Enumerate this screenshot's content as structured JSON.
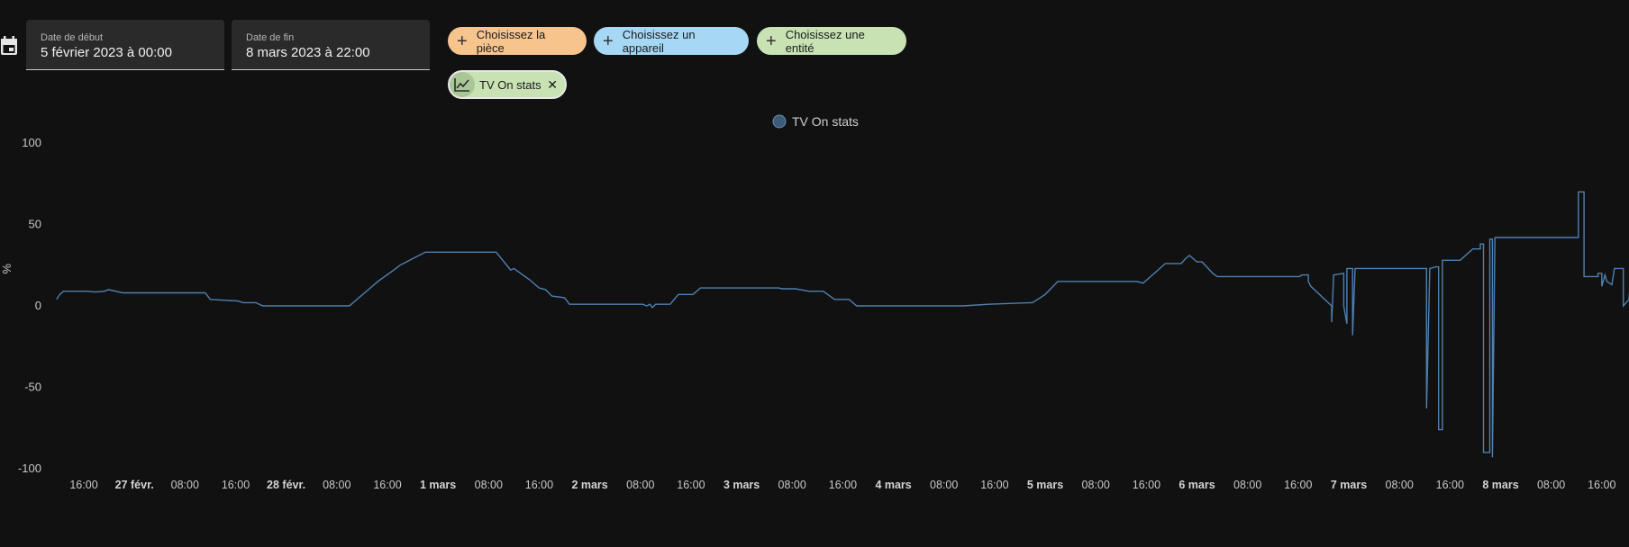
{
  "date_picker": {
    "start_label": "Date de début",
    "start_value": "5 février 2023 à 00:00",
    "end_label": "Date de fin",
    "end_value": "8 mars 2023 à 22:00"
  },
  "target_picker": {
    "area_label": "Choisissez la pièce",
    "device_label": "Choisissez un appareil",
    "entity_label": "Choisissez une entité",
    "selected_entity": "TV On stats"
  },
  "colors": {
    "series": "#4f80b0",
    "legend_dot": "#3d5a78",
    "area_chip": "#f8c48e",
    "device_chip": "#a6d8f5",
    "entity_chip": "#c8e2b4"
  },
  "icons": [
    "calendar-icon",
    "plus-icon",
    "chart-line-icon",
    "close-icon"
  ],
  "chart_data": {
    "type": "line",
    "step": true,
    "ylabel": "%",
    "ylim": [
      -100,
      100
    ],
    "yticks": [
      100,
      50,
      0,
      -50,
      -100
    ],
    "x_unit": "hours since 26 févr. 16:00",
    "xlim": [
      -4.3,
      246.6
    ],
    "xticks": [
      {
        "x": 0,
        "label": "16:00",
        "major": false
      },
      {
        "x": 8,
        "label": "27 févr.",
        "major": true
      },
      {
        "x": 16,
        "label": "08:00",
        "major": false
      },
      {
        "x": 24,
        "label": "16:00",
        "major": false
      },
      {
        "x": 32,
        "label": "28 févr.",
        "major": true
      },
      {
        "x": 40,
        "label": "08:00",
        "major": false
      },
      {
        "x": 48,
        "label": "16:00",
        "major": false
      },
      {
        "x": 56,
        "label": "1 mars",
        "major": true
      },
      {
        "x": 64,
        "label": "08:00",
        "major": false
      },
      {
        "x": 72,
        "label": "16:00",
        "major": false
      },
      {
        "x": 80,
        "label": "2 mars",
        "major": true
      },
      {
        "x": 88,
        "label": "08:00",
        "major": false
      },
      {
        "x": 96,
        "label": "16:00",
        "major": false
      },
      {
        "x": 104,
        "label": "3 mars",
        "major": true
      },
      {
        "x": 112,
        "label": "08:00",
        "major": false
      },
      {
        "x": 120,
        "label": "16:00",
        "major": false
      },
      {
        "x": 128,
        "label": "4 mars",
        "major": true
      },
      {
        "x": 136,
        "label": "08:00",
        "major": false
      },
      {
        "x": 144,
        "label": "16:00",
        "major": false
      },
      {
        "x": 152,
        "label": "5 mars",
        "major": true
      },
      {
        "x": 160,
        "label": "08:00",
        "major": false
      },
      {
        "x": 168,
        "label": "16:00",
        "major": false
      },
      {
        "x": 176,
        "label": "6 mars",
        "major": true
      },
      {
        "x": 184,
        "label": "08:00",
        "major": false
      },
      {
        "x": 192,
        "label": "16:00",
        "major": false
      },
      {
        "x": 200,
        "label": "7 mars",
        "major": true
      },
      {
        "x": 208,
        "label": "08:00",
        "major": false
      },
      {
        "x": 216,
        "label": "16:00",
        "major": false
      },
      {
        "x": 224,
        "label": "8 mars",
        "major": true
      },
      {
        "x": 232,
        "label": "08:00",
        "major": false
      },
      {
        "x": 240,
        "label": "16:00",
        "major": false
      }
    ],
    "legend": "top-center",
    "grid": false,
    "series": [
      {
        "name": "TV On stats",
        "points": [
          [
            -4.3,
            4
          ],
          [
            -3.8,
            7
          ],
          [
            -3.2,
            9
          ],
          [
            0.6,
            9
          ],
          [
            1.8,
            8.5
          ],
          [
            3.3,
            9
          ],
          [
            3.9,
            10
          ],
          [
            6.2,
            8
          ],
          [
            13.5,
            8
          ],
          [
            19.2,
            8
          ],
          [
            20,
            4
          ],
          [
            24.4,
            3
          ],
          [
            25.2,
            2
          ],
          [
            27.2,
            2
          ],
          [
            28.3,
            0
          ],
          [
            42,
            0
          ],
          [
            45,
            10
          ],
          [
            46.5,
            15
          ],
          [
            49,
            22
          ],
          [
            50,
            25
          ],
          [
            52,
            29
          ],
          [
            54,
            33
          ],
          [
            65.2,
            33
          ],
          [
            67.5,
            22
          ],
          [
            68,
            23
          ],
          [
            70.5,
            16
          ],
          [
            72,
            11
          ],
          [
            73,
            10
          ],
          [
            74,
            6
          ],
          [
            76,
            5
          ],
          [
            76.8,
            1
          ],
          [
            88.4,
            1
          ],
          [
            89,
            0
          ],
          [
            89.5,
            1
          ],
          [
            89.9,
            -1
          ],
          [
            90.4,
            1
          ],
          [
            92.7,
            1
          ],
          [
            94,
            7
          ],
          [
            96.3,
            7
          ],
          [
            97.5,
            11
          ],
          [
            109.9,
            11
          ],
          [
            110.4,
            10.5
          ],
          [
            112.5,
            10.5
          ],
          [
            114.6,
            9
          ],
          [
            116.9,
            9
          ],
          [
            118.7,
            4
          ],
          [
            121,
            4
          ],
          [
            122.2,
            0
          ],
          [
            139,
            0
          ],
          [
            143,
            1
          ],
          [
            150,
            2
          ],
          [
            152,
            7
          ],
          [
            154,
            15
          ],
          [
            166.5,
            15
          ],
          [
            167.5,
            14
          ],
          [
            171,
            26
          ],
          [
            173.5,
            26
          ],
          [
            174.2,
            29
          ],
          [
            174.8,
            31
          ],
          [
            176,
            27
          ],
          [
            176.8,
            27
          ],
          [
            178.5,
            20
          ],
          [
            179.2,
            18
          ],
          [
            192.2,
            18
          ],
          [
            192.6,
            19
          ],
          [
            193.6,
            19
          ],
          [
            193.6,
            15
          ],
          [
            194,
            12
          ],
          [
            197.3,
            0
          ],
          [
            197.3,
            -10
          ],
          [
            197.6,
            19
          ],
          [
            199.2,
            20
          ],
          [
            199.2,
            0
          ],
          [
            199.7,
            -11
          ],
          [
            199.7,
            23
          ],
          [
            200.6,
            23
          ],
          [
            200.6,
            -18
          ],
          [
            201,
            23
          ],
          [
            212.3,
            23
          ],
          [
            212.3,
            -63
          ],
          [
            212.8,
            23
          ],
          [
            213.8,
            24
          ],
          [
            214.2,
            24
          ],
          [
            214.2,
            -76
          ],
          [
            214.8,
            -76
          ],
          [
            214.8,
            28
          ],
          [
            217.6,
            28
          ],
          [
            219.6,
            35
          ],
          [
            220.8,
            35
          ],
          [
            220.8,
            38
          ],
          [
            221.3,
            38
          ],
          [
            221.3,
            -90
          ],
          [
            222.3,
            -90
          ],
          [
            222.3,
            41
          ],
          [
            222.7,
            41
          ],
          [
            222.7,
            -93
          ],
          [
            223.1,
            42
          ],
          [
            236.3,
            42
          ],
          [
            236.3,
            70
          ],
          [
            237.2,
            70
          ],
          [
            237.2,
            18
          ],
          [
            239.4,
            18
          ],
          [
            239.4,
            20
          ],
          [
            240,
            20
          ],
          [
            240,
            12
          ],
          [
            240.5,
            19
          ],
          [
            240.8,
            15
          ],
          [
            241.6,
            13
          ],
          [
            242,
            23
          ],
          [
            243.4,
            23
          ],
          [
            243.4,
            0
          ],
          [
            244.3,
            4
          ],
          [
            244.7,
            23
          ],
          [
            246.6,
            23
          ]
        ]
      }
    ]
  }
}
